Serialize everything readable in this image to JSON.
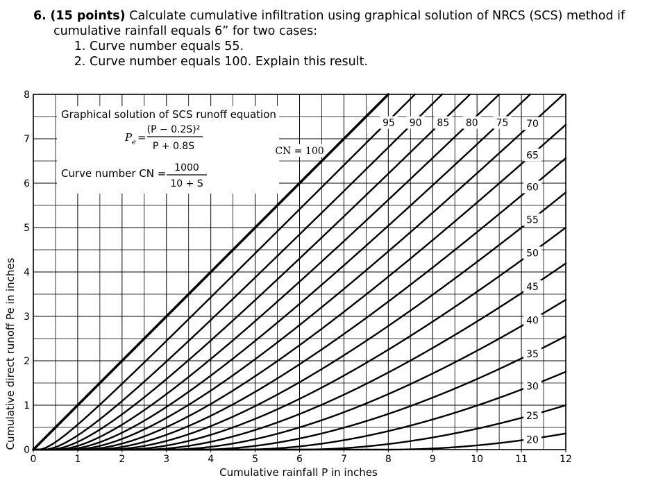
{
  "problem": {
    "number": "6.",
    "points": "(15 points)",
    "text_line1": "Calculate cumulative infiltration using graphical solution of NRCS (SCS) method if",
    "text_line2": "cumulative rainfall equals 6” for two cases:",
    "cases": [
      "Curve number equals 55.",
      "Curve number equals 100. Explain this result."
    ]
  },
  "chart_data": {
    "type": "line",
    "title": "Graphical solution of SCS runoff equation",
    "equation_lhs": "P",
    "equation_lhs_sub": "e",
    "equation_num": "(P − 0.2S)²",
    "equation_den": "P + 0.8S",
    "cn_label": "Curve number CN =",
    "cn_num": "1000",
    "cn_den": "10 + S",
    "xlabel": "Cumulative rainfall P in inches",
    "ylabel": "Cumulative direct runoff Pe in inches",
    "xlim": [
      0,
      12
    ],
    "ylim": [
      0,
      8
    ],
    "xticks": [
      "0",
      "1",
      "2",
      "3",
      "4",
      "5",
      "6",
      "7",
      "8",
      "9",
      "10",
      "11",
      "12"
    ],
    "yticks": [
      "0",
      "1",
      "2",
      "3",
      "4",
      "5",
      "6",
      "7",
      "8"
    ],
    "grid": true,
    "curve_numbers": [
      20,
      25,
      30,
      35,
      40,
      45,
      50,
      55,
      60,
      65,
      70,
      75,
      80,
      85,
      90,
      95,
      100
    ],
    "curve_labels": [
      "20",
      "25",
      "30",
      "35",
      "40",
      "45",
      "50",
      "55",
      "60",
      "65",
      "70",
      "75",
      "80",
      "85",
      "90",
      "95",
      "CN = 100"
    ]
  }
}
